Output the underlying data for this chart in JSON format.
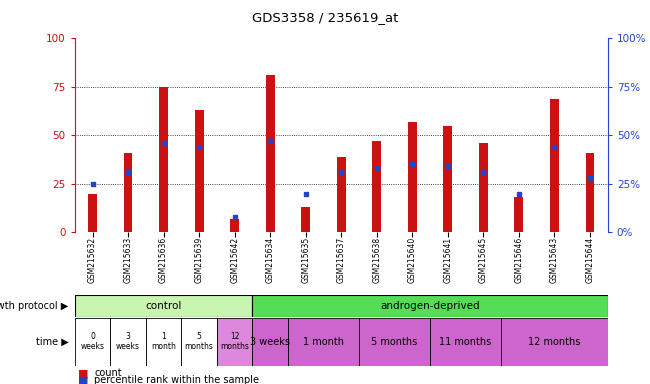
{
  "title": "GDS3358 / 235619_at",
  "samples": [
    "GSM215632",
    "GSM215633",
    "GSM215636",
    "GSM215639",
    "GSM215642",
    "GSM215634",
    "GSM215635",
    "GSM215637",
    "GSM215638",
    "GSM215640",
    "GSM215641",
    "GSM215645",
    "GSM215646",
    "GSM215643",
    "GSM215644"
  ],
  "red_values": [
    20,
    41,
    75,
    63,
    7,
    81,
    13,
    39,
    47,
    57,
    55,
    46,
    18,
    69,
    41
  ],
  "blue_values": [
    25,
    31,
    46,
    44,
    8,
    47,
    20,
    31,
    33,
    35,
    34,
    31,
    20,
    44,
    28
  ],
  "ylim": [
    0,
    100
  ],
  "yticks": [
    0,
    25,
    50,
    75,
    100
  ],
  "bar_color": "#cc1111",
  "blue_color": "#2244cc",
  "axis_color_left": "#cc1111",
  "axis_color_right": "#2244cc",
  "bg_color": "#ffffff",
  "plot_bg": "#ffffff",
  "control_label": "control",
  "androgen_label": "androgen-deprived",
  "control_color": "#c8f5b0",
  "androgen_color": "#55dd55",
  "time_color_white": "#ffffff",
  "time_color_pink": "#dd88dd",
  "time_color_androgen": "#cc66cc",
  "control_times": [
    "0\nweeks",
    "3\nweeks",
    "1\nmonth",
    "5\nmonths",
    "12\nmonths"
  ],
  "androgen_times": [
    "3 weeks",
    "1 month",
    "5 months",
    "11 months",
    "12 months"
  ],
  "androgen_counts": [
    1,
    2,
    2,
    2,
    3
  ],
  "growth_protocol_label": "growth protocol",
  "time_label": "time",
  "legend_count": "count",
  "legend_pct": "percentile rank within the sample",
  "n_control": 5,
  "n_androgen": 10,
  "n_total": 15
}
